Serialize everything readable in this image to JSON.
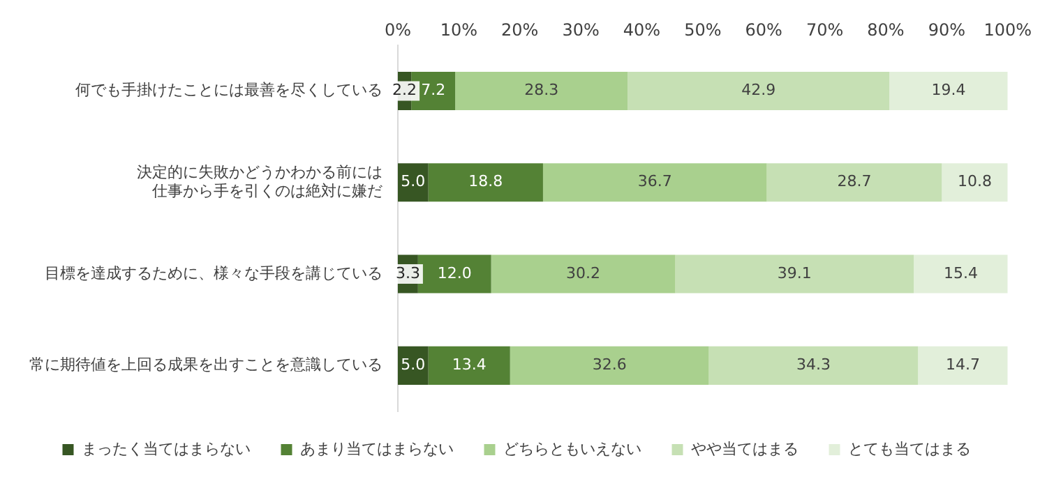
{
  "chart_data": {
    "type": "bar",
    "orientation": "horizontal",
    "stacked": true,
    "categories": [
      "何でも手掛けたことには最善を尽くしている",
      "決定的に失敗かどうかわかる前には仕事から手を引くのは絶対に嫌だ",
      "目標を達成するために、様々な手段を講じている",
      "常に期待値を上回る成果を出すことを意識している"
    ],
    "series": [
      {
        "name": "まったく当てはまらない",
        "color": "#375623",
        "values": [
          2.2,
          5.0,
          3.3,
          5.0
        ],
        "value_labels": [
          "2.2",
          "5.0",
          "3.3",
          "5.0"
        ]
      },
      {
        "name": "あまり当てはまらない",
        "color": "#548235",
        "values": [
          7.2,
          18.8,
          12.0,
          13.4
        ],
        "value_labels": [
          "7.2",
          "18.8",
          "12.0",
          "13.4"
        ]
      },
      {
        "name": "どちらともいえない",
        "color": "#a9d08e",
        "values": [
          28.3,
          36.7,
          30.2,
          32.6
        ],
        "value_labels": [
          "28.3",
          "36.7",
          "30.2",
          "32.6"
        ]
      },
      {
        "name": "やや当てはまる",
        "color": "#c6e0b4",
        "values": [
          42.9,
          28.7,
          39.1,
          34.3
        ],
        "value_labels": [
          "42.9",
          "28.7",
          "39.1",
          "34.3"
        ]
      },
      {
        "name": "とても当てはまる",
        "color": "#e2efda",
        "values": [
          19.4,
          10.8,
          15.4,
          14.7
        ],
        "value_labels": [
          "19.4",
          "10.8",
          "15.4",
          "14.7"
        ]
      }
    ],
    "xlim": [
      0,
      100
    ],
    "xticks": [
      {
        "value": 0,
        "label": "0%"
      },
      {
        "value": 10,
        "label": "10%"
      },
      {
        "value": 20,
        "label": "20%"
      },
      {
        "value": 30,
        "label": "30%"
      },
      {
        "value": 40,
        "label": "40%"
      },
      {
        "value": 50,
        "label": "50%"
      },
      {
        "value": 60,
        "label": "60%"
      },
      {
        "value": 70,
        "label": "70%"
      },
      {
        "value": 80,
        "label": "80%"
      },
      {
        "value": 90,
        "label": "90%"
      },
      {
        "value": 100,
        "label": "100%"
      }
    ],
    "grid": false,
    "legend": "bottom"
  }
}
